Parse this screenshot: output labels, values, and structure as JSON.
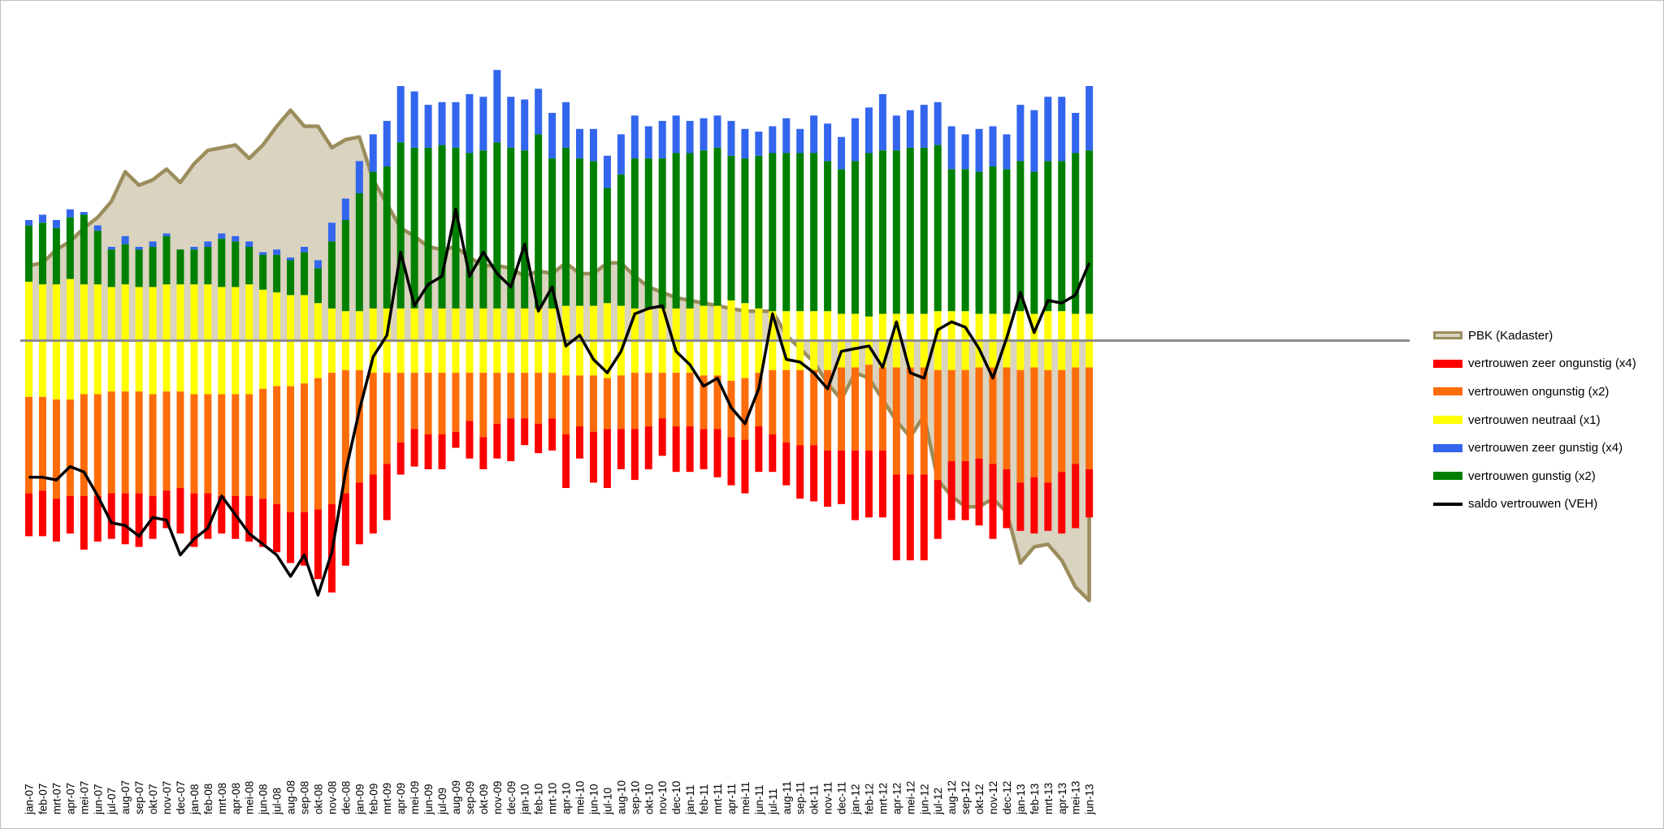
{
  "colors": {
    "zeer_ongunstig": "#ff0000",
    "ongunstig": "#ff6c0a",
    "neutraal": "#ffff00",
    "zeer_gunstig": "#3366ee",
    "gunstig": "#008000",
    "saldo": "#000000",
    "pbk_fill": "#d9d3c0",
    "pbk_line": "#9b8d5c"
  },
  "chart_data": {
    "type": "bar",
    "title": "",
    "xlabel": "",
    "ylabel": "",
    "ylim": [
      -100,
      100
    ],
    "categories": [
      "jan-07",
      "feb-07",
      "mrt-07",
      "apr-07",
      "mei-07",
      "jun-07",
      "jul-07",
      "aug-07",
      "sep-07",
      "okt-07",
      "nov-07",
      "dec-07",
      "jan-08",
      "feb-08",
      "mrt-08",
      "apr-08",
      "mei-08",
      "jun-08",
      "jul-08",
      "aug-08",
      "sep-08",
      "okt-08",
      "nov-08",
      "dec-08",
      "jan-09",
      "feb-09",
      "mrt-09",
      "apr-09",
      "mei-09",
      "jun-09",
      "jul-09",
      "aug-09",
      "sep-09",
      "okt-09",
      "nov-09",
      "dec-09",
      "jan-10",
      "feb-10",
      "mrt-10",
      "apr-10",
      "mei-10",
      "jun-10",
      "jul-10",
      "aug-10",
      "sep-10",
      "okt-10",
      "nov-10",
      "dec-10",
      "jan-11",
      "feb-11",
      "mrt-11",
      "apr-11",
      "mei-11",
      "jun-11",
      "jul-11",
      "aug-11",
      "sep-11",
      "okt-11",
      "nov-11",
      "dec-11",
      "jan-12",
      "feb-12",
      "mrt-12",
      "apr-12",
      "mei-12",
      "jun-12",
      "jul-12",
      "aug-12",
      "sep-12",
      "okt-12",
      "nov-12",
      "dec-12",
      "jan-13",
      "feb-13",
      "mrt-13",
      "apr-13",
      "mei-13",
      "jun-13"
    ],
    "series": [
      {
        "name": "vertrouwen neutraal (x1)",
        "key": "neutraal",
        "stack": "both",
        "pos": [
          22,
          21,
          21,
          23,
          21,
          21,
          20,
          21,
          20,
          20,
          21,
          21,
          21,
          21,
          20,
          20,
          21,
          19,
          18,
          17,
          17,
          14,
          12,
          11,
          11,
          12,
          12,
          12,
          12,
          12,
          12,
          12,
          12,
          12,
          12,
          12,
          12,
          12,
          12,
          13,
          13,
          13,
          14,
          13,
          12,
          12,
          12,
          12,
          12,
          13,
          13,
          15,
          14,
          12,
          11,
          11,
          11,
          11,
          11,
          10,
          10,
          9,
          10,
          10,
          10,
          10,
          11,
          11,
          11,
          10,
          10,
          10,
          11,
          10,
          11,
          11,
          10,
          10
        ],
        "neg": [
          -21,
          -21,
          -22,
          -22,
          -20,
          -20,
          -19,
          -19,
          -19,
          -20,
          -19,
          -19,
          -20,
          -20,
          -20,
          -20,
          -20,
          -18,
          -17,
          -17,
          -16,
          -14,
          -12,
          -11,
          -11,
          -12,
          -12,
          -12,
          -12,
          -12,
          -12,
          -12,
          -12,
          -12,
          -12,
          -12,
          -12,
          -12,
          -12,
          -13,
          -13,
          -13,
          -14,
          -13,
          -12,
          -12,
          -12,
          -12,
          -12,
          -13,
          -13,
          -15,
          -14,
          -12,
          -11,
          -11,
          -11,
          -11,
          -11,
          -10,
          -10,
          -9,
          -10,
          -10,
          -10,
          -10,
          -11,
          -11,
          -11,
          -10,
          -10,
          -10,
          -11,
          -10,
          -11,
          -11,
          -10,
          -10
        ]
      },
      {
        "name": "vertrouwen gunstig (x2)",
        "key": "gunstig",
        "stack": "pos",
        "values": [
          21,
          23,
          21,
          23,
          26,
          20,
          14,
          15,
          14,
          15,
          18,
          13,
          13,
          14,
          18,
          17,
          14,
          13,
          14,
          13,
          16,
          13,
          25,
          34,
          44,
          51,
          53,
          62,
          60,
          60,
          61,
          60,
          58,
          59,
          62,
          60,
          59,
          65,
          56,
          59,
          55,
          54,
          43,
          49,
          56,
          56,
          56,
          58,
          58,
          58,
          59,
          54,
          54,
          57,
          59,
          59,
          59,
          59,
          56,
          54,
          57,
          61,
          61,
          61,
          62,
          62,
          62,
          53,
          53,
          53,
          55,
          54,
          56,
          53,
          56,
          56,
          60,
          61
        ]
      },
      {
        "name": "vertrouwen zeer gunstig (x4)",
        "key": "zeer_gunstig",
        "stack": "pos",
        "values": [
          2,
          3,
          3,
          3,
          1,
          2,
          1,
          3,
          1,
          2,
          1,
          0,
          1,
          2,
          2,
          2,
          2,
          1,
          2,
          1,
          2,
          3,
          7,
          8,
          12,
          14,
          17,
          21,
          21,
          16,
          16,
          17,
          22,
          20,
          27,
          19,
          19,
          17,
          17,
          17,
          11,
          12,
          12,
          15,
          16,
          12,
          14,
          14,
          12,
          12,
          12,
          13,
          11,
          9,
          10,
          13,
          9,
          14,
          14,
          12,
          16,
          17,
          21,
          13,
          14,
          16,
          16,
          16,
          13,
          16,
          15,
          13,
          21,
          23,
          24,
          24,
          15,
          24
        ]
      },
      {
        "name": "vertrouwen ongunstig (x2)",
        "key": "ongunstig",
        "stack": "neg",
        "values": [
          -36,
          -35,
          -37,
          -36,
          -38,
          -38,
          -38,
          -38,
          -38,
          -38,
          -37,
          -36,
          -37,
          -37,
          -38,
          -38,
          -38,
          -41,
          -44,
          -47,
          -48,
          -49,
          -49,
          -46,
          -42,
          -38,
          -34,
          -26,
          -21,
          -23,
          -23,
          -22,
          -18,
          -24,
          -19,
          -17,
          -17,
          -19,
          -17,
          -22,
          -19,
          -21,
          -19,
          -20,
          -21,
          -20,
          -17,
          -20,
          -20,
          -20,
          -20,
          -21,
          -23,
          -20,
          -24,
          -27,
          -28,
          -28,
          -30,
          -31,
          -31,
          -32,
          -31,
          -40,
          -40,
          -40,
          -41,
          -34,
          -34,
          -34,
          -36,
          -38,
          -42,
          -41,
          -42,
          -38,
          -36,
          -38
        ]
      },
      {
        "name": "vertrouwen zeer ongunstig (x4)",
        "key": "zeer_ongunstig",
        "stack": "neg",
        "values": [
          -16,
          -17,
          -16,
          -14,
          -20,
          -17,
          -17,
          -19,
          -20,
          -16,
          -14,
          -17,
          -20,
          -17,
          -14,
          -16,
          -17,
          -18,
          -18,
          -19,
          -20,
          -26,
          -33,
          -27,
          -23,
          -22,
          -21,
          -12,
          -14,
          -13,
          -13,
          -6,
          -14,
          -12,
          -13,
          -16,
          -10,
          -11,
          -12,
          -20,
          -12,
          -19,
          -22,
          -15,
          -19,
          -16,
          -14,
          -17,
          -17,
          -15,
          -18,
          -18,
          -20,
          -17,
          -14,
          -16,
          -20,
          -21,
          -21,
          -20,
          -26,
          -25,
          -25,
          -32,
          -32,
          -32,
          -22,
          -22,
          -22,
          -25,
          -28,
          -22,
          -18,
          -21,
          -18,
          -23,
          -24,
          -18
        ]
      },
      {
        "name": "saldo vertrouwen (VEH)",
        "key": "saldo",
        "type": "line",
        "values": [
          -51,
          -51,
          -52,
          -47,
          -49,
          -58,
          -68,
          -69,
          -73,
          -66,
          -67,
          -80,
          -74,
          -70,
          -58,
          -65,
          -72,
          -76,
          -80,
          -88,
          -80,
          -95,
          -79,
          -49,
          -26,
          -6,
          2,
          33,
          13,
          21,
          24,
          49,
          24,
          33,
          25,
          20,
          36,
          11,
          20,
          -2,
          2,
          -7,
          -12,
          -4,
          10,
          12,
          13,
          -4,
          -9,
          -17,
          -14,
          -25,
          -31,
          -18,
          10,
          -7,
          -8,
          -12,
          -18,
          -4,
          -3,
          -2,
          -10,
          7,
          -12,
          -14,
          4,
          7,
          5,
          -3,
          -14,
          1,
          18,
          3,
          15,
          14,
          17,
          29
        ]
      },
      {
        "name": "PBK (Kadaster)",
        "key": "pbk",
        "type": "area",
        "values": [
          28,
          29,
          34,
          37,
          42,
          46,
          52,
          63,
          58,
          60,
          64,
          59,
          66,
          71,
          72,
          73,
          68,
          73,
          80,
          86,
          80,
          80,
          72,
          75,
          76,
          60,
          51,
          42,
          39,
          35,
          34,
          35,
          31,
          28,
          28,
          27,
          24,
          26,
          25,
          29,
          25,
          25,
          29,
          29,
          24,
          20,
          18,
          16,
          15,
          14,
          13,
          12,
          11,
          11,
          11,
          2,
          -3,
          -8,
          -16,
          -22,
          -12,
          -14,
          -22,
          -30,
          -36,
          -28,
          -52,
          -58,
          -62,
          -62,
          -59,
          -64,
          -83,
          -77,
          -76,
          -82,
          -92,
          -97
        ]
      }
    ],
    "legend": [
      "PBK (Kadaster)",
      "vertrouwen zeer ongunstig (x4)",
      "vertrouwen ongunstig (x2)",
      "vertrouwen neutraal (x1)",
      "vertrouwen zeer gunstig (x4)",
      "vertrouwen gunstig (x2)",
      "saldo vertrouwen (VEH)"
    ],
    "legend_position": "right",
    "grid": false
  }
}
